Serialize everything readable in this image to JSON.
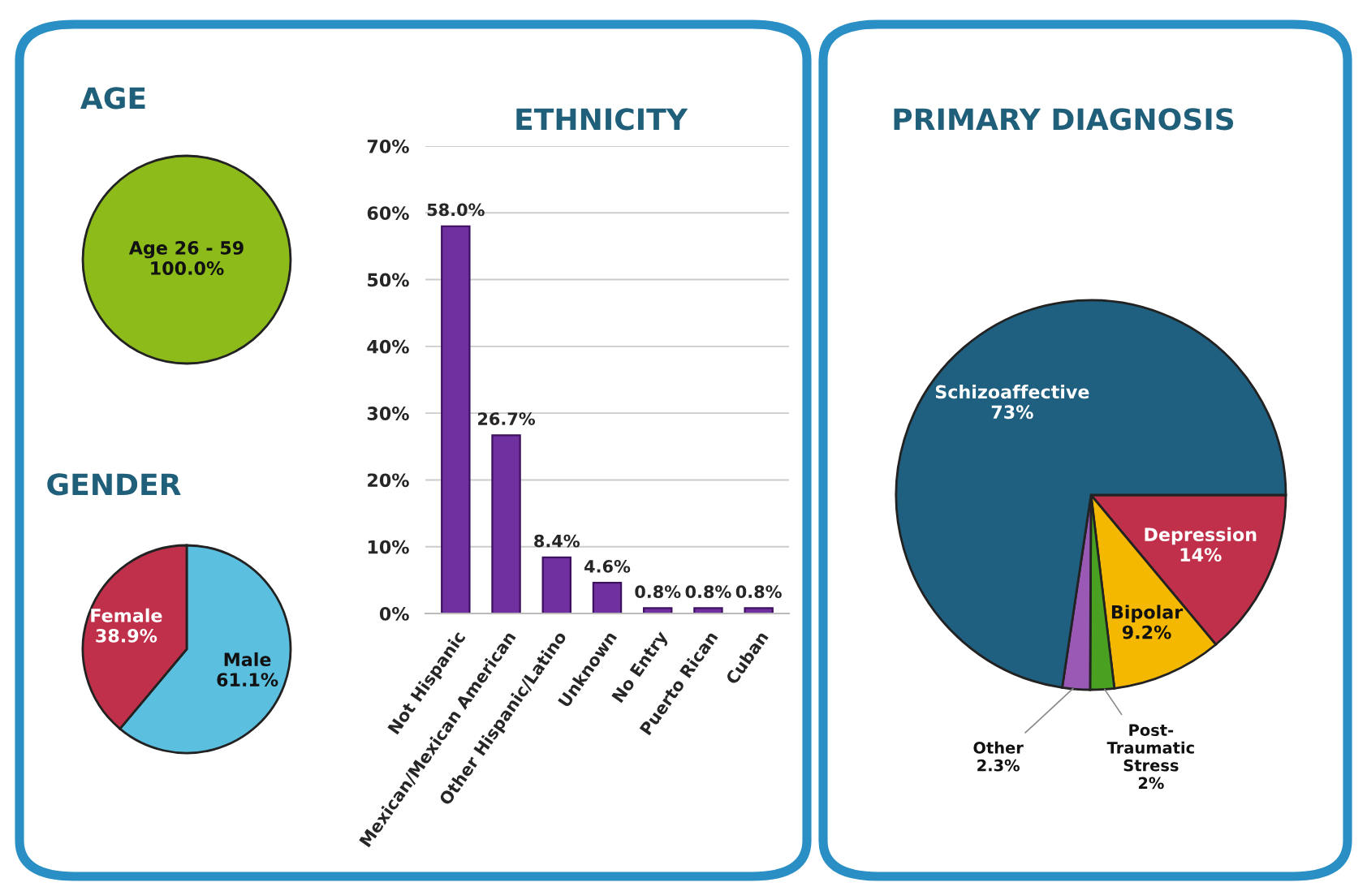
{
  "chart_data": [
    {
      "type": "pie",
      "title": "AGE",
      "categories": [
        "Age 26 - 59"
      ],
      "values": [
        100.0
      ],
      "value_labels": [
        "100.0%"
      ],
      "colors": [
        "#8cbb1a"
      ]
    },
    {
      "type": "pie",
      "title": "GENDER",
      "categories": [
        "Male",
        "Female"
      ],
      "values": [
        61.1,
        38.9
      ],
      "value_labels": [
        "61.1%",
        "38.9%"
      ],
      "colors": [
        "#5bbfe0",
        "#c0304a"
      ]
    },
    {
      "type": "bar",
      "title": "ETHNICITY",
      "categories": [
        "Not Hispanic",
        "Mexican/Mexican American",
        "Other Hispanic/Latino",
        "Unknown",
        "No Entry",
        "Puerto Rican",
        "Cuban"
      ],
      "values": [
        58.0,
        26.7,
        8.4,
        4.6,
        0.8,
        0.8,
        0.8
      ],
      "value_labels": [
        "58.0%",
        "26.7%",
        "8.4%",
        "4.6%",
        "0.8%",
        "0.8%",
        "0.8%"
      ],
      "color": "#7030a0",
      "ylim": [
        0,
        70
      ],
      "yticks": [
        {
          "value": 0,
          "label": "0%"
        },
        {
          "value": 10,
          "label": "10%"
        },
        {
          "value": 20,
          "label": "20%"
        },
        {
          "value": 30,
          "label": "30%"
        },
        {
          "value": 40,
          "label": "40%"
        },
        {
          "value": 50,
          "label": "50%"
        },
        {
          "value": 60,
          "label": "60%"
        },
        {
          "value": 70,
          "label": "70%"
        }
      ],
      "grid": "y"
    },
    {
      "type": "pie",
      "title": "PRIMARY DIAGNOSIS",
      "categories": [
        "Depression",
        "Bipolar",
        "Post-\nTraumatic\nStress",
        "Other",
        "Schizoaffective"
      ],
      "values": [
        14,
        9.2,
        2,
        2.3,
        73
      ],
      "value_labels": [
        "14%",
        "9.2%",
        "2%",
        "2.3%",
        "73%"
      ],
      "colors": [
        "#c0304a",
        "#f5b800",
        "#4aa020",
        "#9b59b6",
        "#1f5f7f"
      ]
    }
  ]
}
